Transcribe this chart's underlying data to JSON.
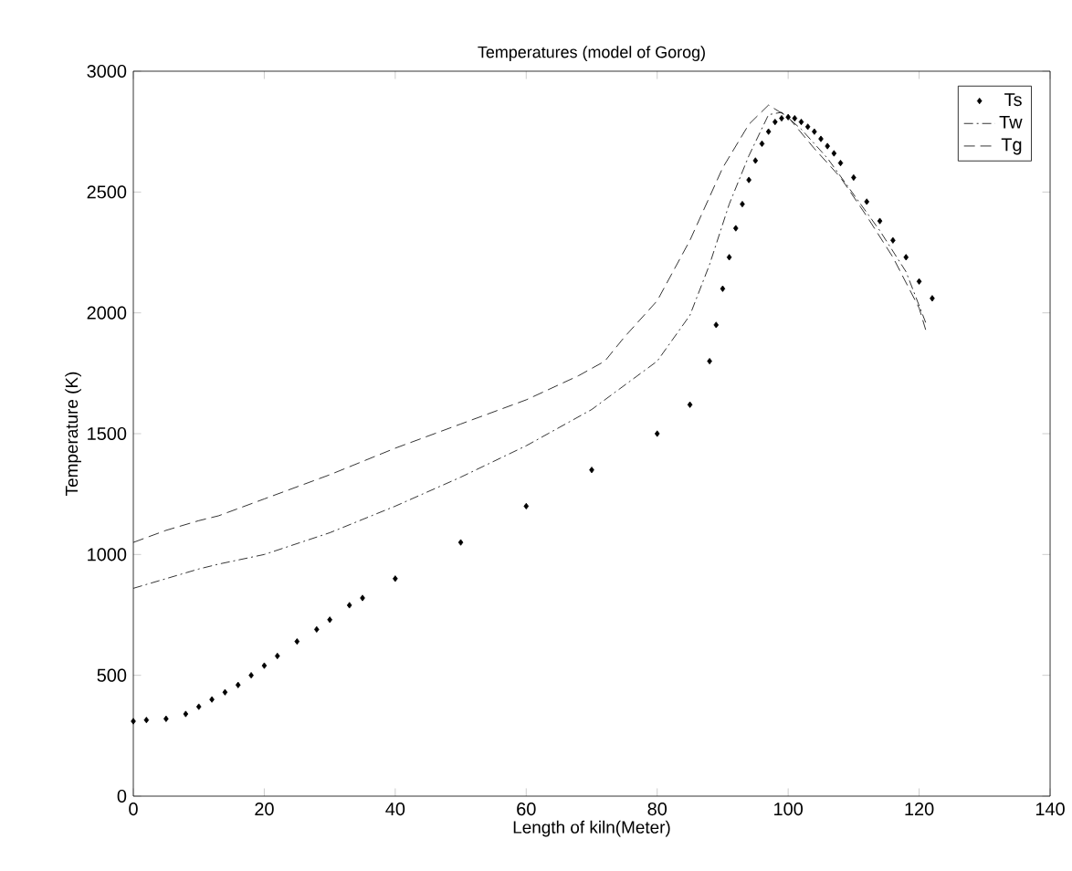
{
  "chart_data": {
    "type": "line",
    "title": "Temperatures (model of Gorog)",
    "xlabel": "Length of kiln(Meter)",
    "ylabel": "Temperature (K)",
    "xlim": [
      0,
      140
    ],
    "xticks": [
      0,
      20,
      40,
      60,
      80,
      100,
      120,
      140
    ],
    "ylim": [
      0,
      3000
    ],
    "yticks": [
      0,
      500,
      1000,
      1500,
      2000,
      2500,
      3000
    ],
    "legend": "top right",
    "grid": false,
    "series": [
      {
        "name": "Ts",
        "type": "scatter",
        "marker": "diamond",
        "color": "#000000",
        "x": [
          0,
          2,
          5,
          8,
          10,
          12,
          14,
          16,
          18,
          20,
          22,
          25,
          28,
          30,
          33,
          35,
          40,
          50,
          60,
          70,
          80,
          85,
          88,
          89,
          90,
          91,
          92,
          93,
          94,
          95,
          96,
          97,
          98,
          99,
          100,
          101,
          102,
          103,
          104,
          105,
          106,
          107,
          108,
          110,
          112,
          114,
          116,
          118,
          120,
          122
        ],
        "values": [
          310,
          315,
          320,
          340,
          370,
          400,
          430,
          460,
          500,
          540,
          580,
          640,
          690,
          730,
          790,
          820,
          900,
          1050,
          1200,
          1350,
          1500,
          1620,
          1800,
          1950,
          2100,
          2230,
          2350,
          2450,
          2550,
          2630,
          2700,
          2750,
          2790,
          2805,
          2810,
          2805,
          2790,
          2770,
          2750,
          2720,
          2690,
          2660,
          2620,
          2560,
          2460,
          2380,
          2300,
          2230,
          2130,
          2060
        ]
      },
      {
        "name": "Tw",
        "line_style": "dashdot",
        "color": "#000000",
        "x": [
          0,
          5,
          10,
          13,
          20,
          30,
          40,
          50,
          60,
          70,
          80,
          85,
          88,
          91,
          94,
          97,
          99,
          102,
          106,
          110,
          114,
          118,
          121
        ],
        "values": [
          860,
          900,
          940,
          960,
          1000,
          1090,
          1200,
          1320,
          1450,
          1600,
          1800,
          1990,
          2200,
          2450,
          2650,
          2820,
          2830,
          2760,
          2640,
          2490,
          2340,
          2170,
          1960
        ]
      },
      {
        "name": "Tg",
        "line_style": "dashed",
        "color": "#000000",
        "x": [
          0,
          5,
          10,
          13,
          20,
          30,
          40,
          50,
          60,
          68,
          72,
          75,
          80,
          85,
          90,
          94,
          97,
          100,
          104,
          108,
          112,
          116,
          120,
          121
        ],
        "values": [
          1050,
          1100,
          1140,
          1160,
          1230,
          1330,
          1440,
          1540,
          1640,
          1740,
          1800,
          1900,
          2050,
          2300,
          2600,
          2780,
          2860,
          2810,
          2680,
          2560,
          2400,
          2230,
          2020,
          1930
        ]
      }
    ]
  }
}
